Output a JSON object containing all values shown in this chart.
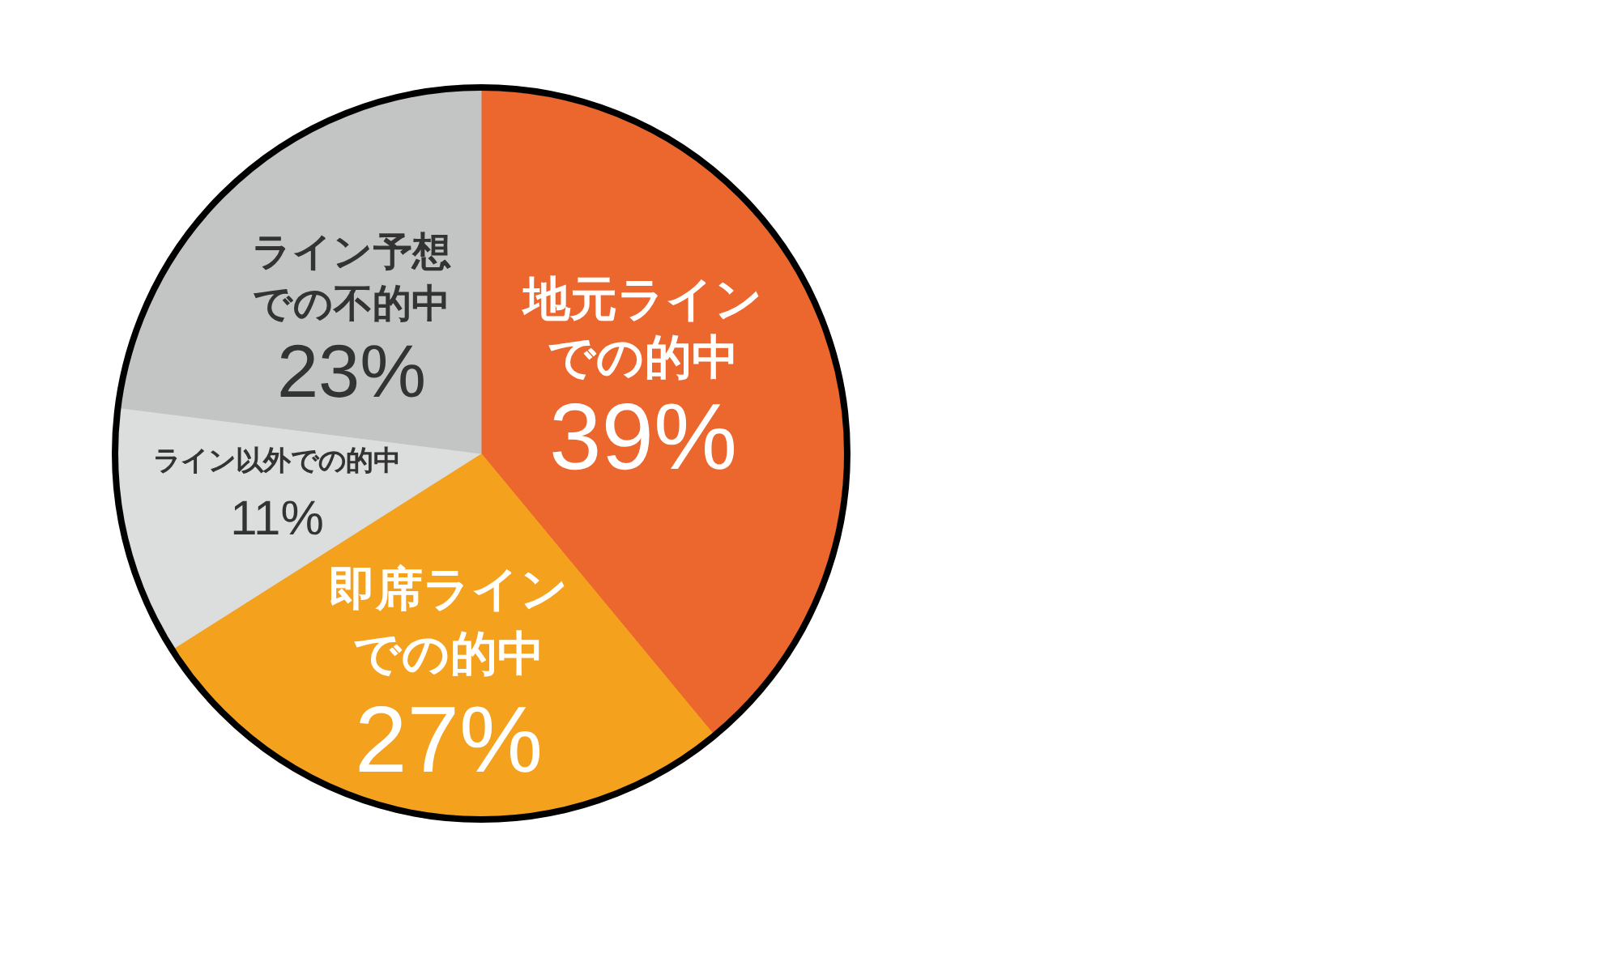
{
  "chart_data": {
    "type": "pie",
    "categories": [
      "地元ラインでの的中",
      "即席ラインでの的中",
      "ライン以外での的中",
      "ライン予想での不的中"
    ],
    "values": [
      39,
      27,
      11,
      23
    ],
    "colors": [
      "#eb672d",
      "#f4a11e",
      "#dcdddd",
      "#c3c4c4"
    ],
    "value_labels": [
      "39%",
      "27%",
      "11%",
      "23%"
    ]
  }
}
